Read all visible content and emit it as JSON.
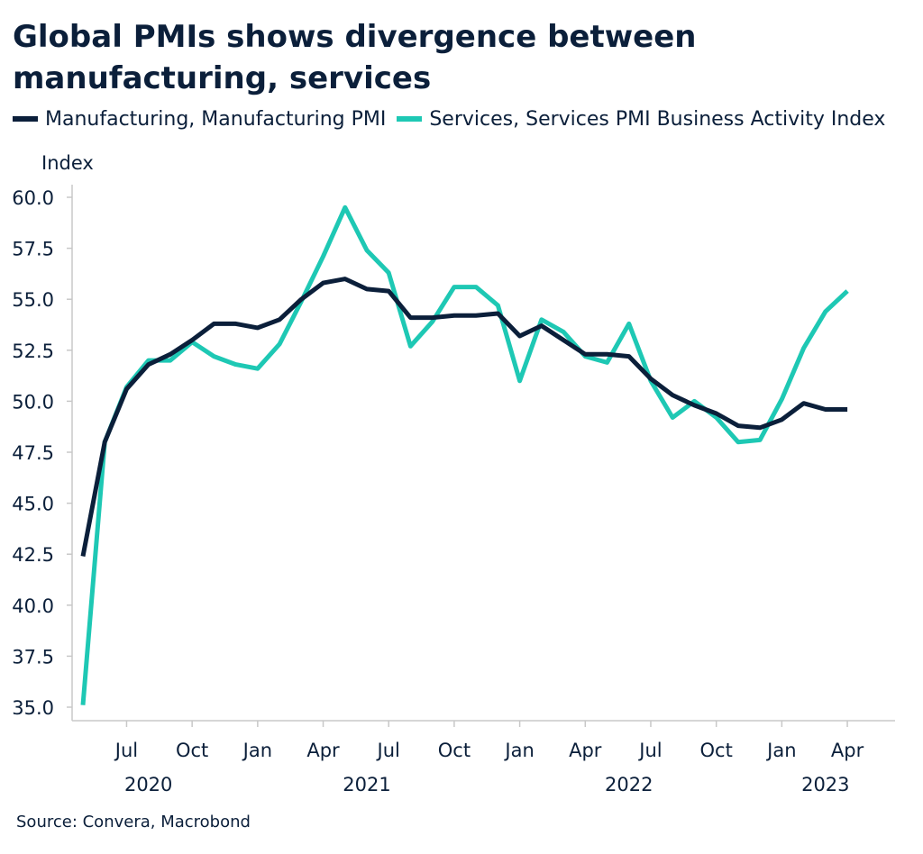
{
  "title": "Global PMIs shows divergence between manufacturing, services",
  "source": "Source: Convera, Macrobond",
  "chart_data": {
    "type": "line",
    "ylabel": "Index",
    "ylim": [
      35.0,
      60.0
    ],
    "yticks": [
      "35.0",
      "37.5",
      "40.0",
      "42.5",
      "45.0",
      "47.5",
      "50.0",
      "52.5",
      "55.0",
      "57.5",
      "60.0"
    ],
    "x": [
      "2020-05",
      "2020-06",
      "2020-07",
      "2020-08",
      "2020-09",
      "2020-10",
      "2020-11",
      "2020-12",
      "2021-01",
      "2021-02",
      "2021-03",
      "2021-04",
      "2021-05",
      "2021-06",
      "2021-07",
      "2021-08",
      "2021-09",
      "2021-10",
      "2021-11",
      "2021-12",
      "2022-01",
      "2022-02",
      "2022-03",
      "2022-04",
      "2022-05",
      "2022-06",
      "2022-07",
      "2022-08",
      "2022-09",
      "2022-10",
      "2022-11",
      "2022-12",
      "2023-01",
      "2023-02",
      "2023-03",
      "2023-04",
      "2023-05"
    ],
    "month_ticks": [
      "Jul",
      "Oct",
      "Jan",
      "Apr",
      "Jul",
      "Oct",
      "Jan",
      "Apr",
      "Jul",
      "Oct",
      "Jan",
      "Apr"
    ],
    "month_tick_x": [
      "2020-07",
      "2020-10",
      "2021-01",
      "2021-04",
      "2021-07",
      "2021-10",
      "2022-01",
      "2022-04",
      "2022-07",
      "2022-10",
      "2023-01",
      "2023-04"
    ],
    "year_labels": [
      "2020",
      "2021",
      "2022",
      "2023"
    ],
    "year_label_x": [
      "2020-08",
      "2021-06",
      "2022-06",
      "2023-03"
    ],
    "grid": false,
    "legend_position": "top-left",
    "series": [
      {
        "name": "Manufacturing, Manufacturing PMI",
        "color": "#0b1f3a",
        "values": [
          42.4,
          48.0,
          50.6,
          51.8,
          52.3,
          53.0,
          53.8,
          53.8,
          53.6,
          54.0,
          55.0,
          55.8,
          56.0,
          55.5,
          55.4,
          54.1,
          54.1,
          54.2,
          54.2,
          54.3,
          53.2,
          53.7,
          53.0,
          52.3,
          52.3,
          52.2,
          51.1,
          50.3,
          49.8,
          49.4,
          48.8,
          48.7,
          49.1,
          49.9,
          49.6,
          49.6,
          null
        ]
      },
      {
        "name": "Services, Services PMI Business Activity Index",
        "color": "#1ec8b4",
        "values": [
          35.1,
          48.0,
          50.7,
          52.0,
          52.0,
          52.9,
          52.2,
          51.8,
          51.6,
          52.8,
          54.9,
          57.1,
          59.5,
          57.4,
          56.3,
          52.7,
          53.9,
          55.6,
          55.6,
          54.7,
          51.0,
          54.0,
          53.4,
          52.2,
          51.9,
          53.8,
          51.0,
          49.2,
          50.0,
          49.2,
          48.0,
          48.1,
          50.1,
          52.6,
          54.4,
          55.4,
          null
        ]
      }
    ]
  }
}
